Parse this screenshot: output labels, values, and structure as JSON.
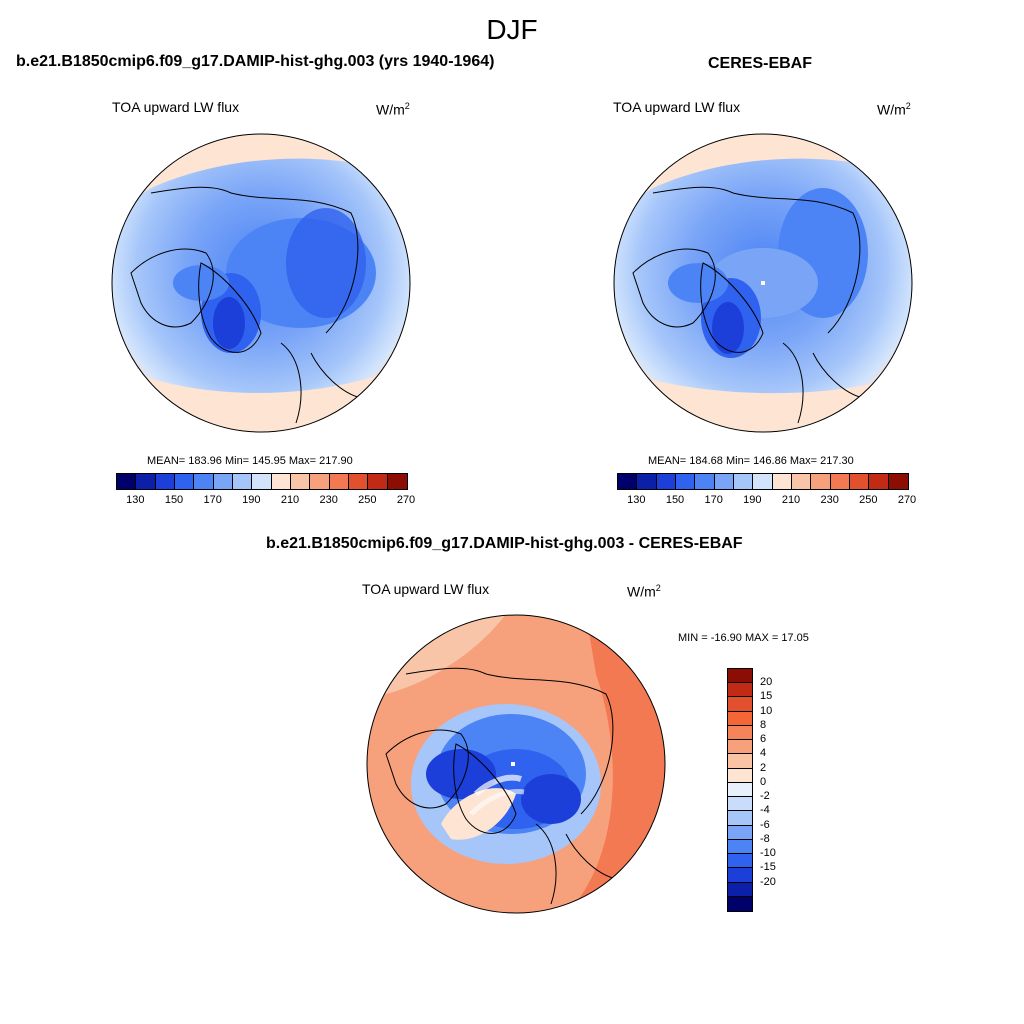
{
  "season": "DJF",
  "panels": {
    "model": {
      "title": "b.e21.B1850cmip6.f09_g17.DAMIP-hist-ghg.003 (yrs 1940-1964)",
      "variable": "TOA upward LW flux",
      "units_base": "W/m",
      "units_exp": "2",
      "stats": "MEAN= 183.96  Min= 145.95  Max= 217.90"
    },
    "obs": {
      "title": "CERES-EBAF",
      "variable": "TOA upward LW flux",
      "units_base": "W/m",
      "units_exp": "2",
      "stats": "MEAN= 184.68  Min= 146.86  Max= 217.30"
    },
    "diff": {
      "title": "b.e21.B1850cmip6.f09_g17.DAMIP-hist-ghg.003 - CERES-EBAF",
      "variable": "TOA upward LW flux",
      "units_base": "W/m",
      "units_exp": "2",
      "stats": "MIN = -16.90 MAX =  17.05"
    }
  },
  "colorbar_abs": {
    "colors": [
      "#00006b",
      "#0c1fa8",
      "#1b3fd8",
      "#2f62ee",
      "#4d84f5",
      "#7aa5f7",
      "#a6c6fa",
      "#d2e4fc",
      "#fde4d3",
      "#f9c5a8",
      "#f6a07c",
      "#f27952",
      "#e2502d",
      "#c12a15",
      "#8c0d04"
    ],
    "ticks": [
      "130",
      "150",
      "170",
      "190",
      "210",
      "230",
      "250",
      "270"
    ]
  },
  "colorbar_diff": {
    "colors": [
      "#8c0d04",
      "#c12a15",
      "#e2502d",
      "#f46636",
      "#f6845a",
      "#f7a07c",
      "#fac3a4",
      "#fde4d3",
      "#e8f0fc",
      "#c9dcfa",
      "#a6c6fa",
      "#7aa5f7",
      "#4d84f5",
      "#2f62ee",
      "#1b3fd8",
      "#0c1fa8",
      "#00006b"
    ],
    "labels": [
      "20",
      "15",
      "10",
      "8",
      "6",
      "4",
      "2",
      "0",
      "-2",
      "-4",
      "-6",
      "-8",
      "-10",
      "-15",
      "-20"
    ]
  },
  "icons": {
    "map_projection": "north-polar-stereographic-map-icon"
  }
}
